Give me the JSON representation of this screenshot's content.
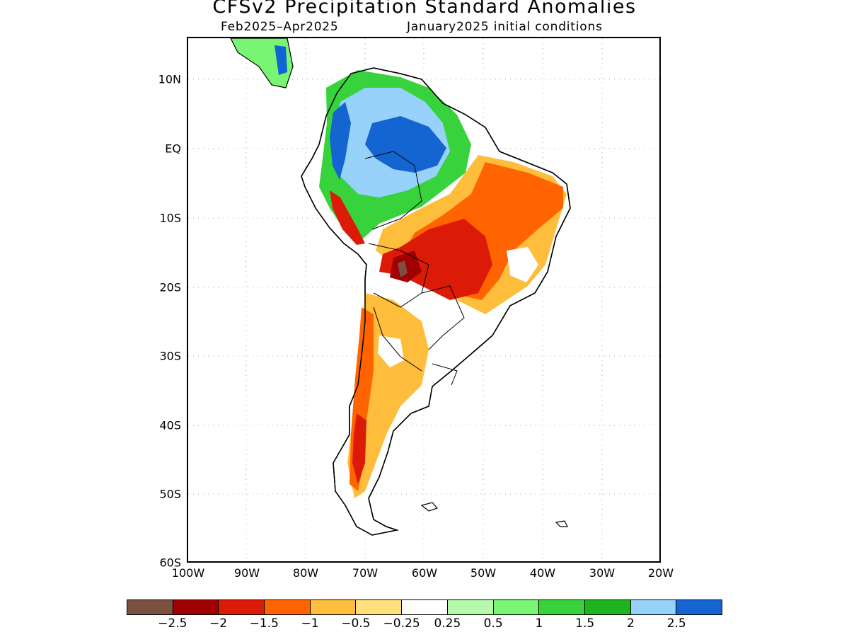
{
  "title": "CFSv2 Precipitation Standard Anomalies",
  "subtitle_left": "Feb2025–Apr2025",
  "subtitle_right": "January2025 initial conditions",
  "lat_labels": [
    "10N",
    "EQ",
    "10S",
    "20S",
    "30S",
    "40S",
    "50S",
    "60S"
  ],
  "lon_labels": [
    "100W",
    "90W",
    "80W",
    "70W",
    "60W",
    "50W",
    "40W",
    "30W",
    "20W"
  ],
  "colorbar": {
    "colors": [
      "#7b5040",
      "#a00000",
      "#dc1a08",
      "#ff6400",
      "#ffbd3c",
      "#ffe07c",
      "#ffffff",
      "#b4faaa",
      "#78f572",
      "#37d23c",
      "#1eb41e",
      "#96d2fa",
      "#1464d2"
    ],
    "labels": [
      "−2.5",
      "−2",
      "−1.5",
      "−1",
      "−0.5",
      "−0.25",
      "0.25",
      "0.5",
      "1",
      "1.5",
      "2",
      "2.5"
    ]
  }
}
